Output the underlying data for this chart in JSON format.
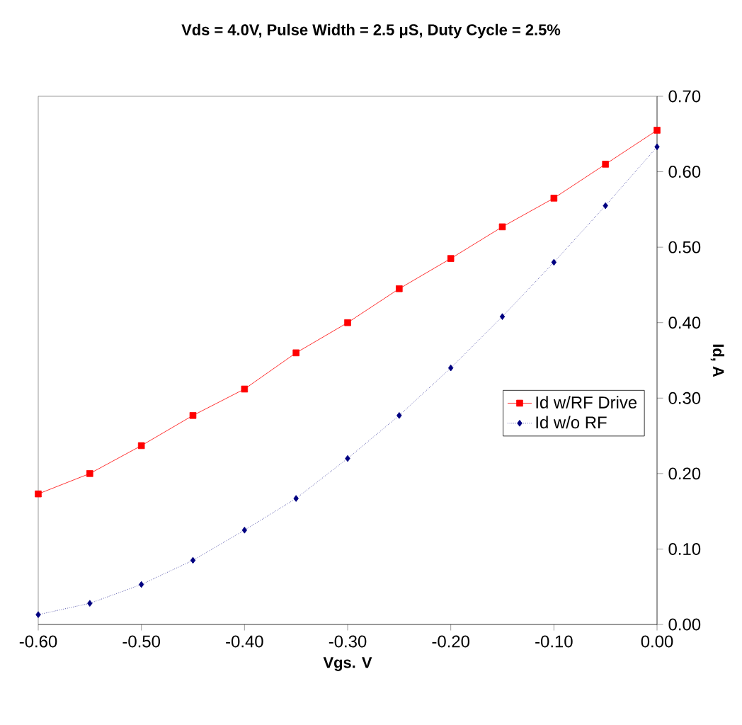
{
  "chart_data": {
    "type": "line",
    "title": "Vds = 4.0V, Pulse Width = 2.5 μS, Duty Cycle = 2.5%",
    "xlabel": "Vgs. V",
    "ylabel": "Id, A",
    "x": [
      -0.6,
      -0.55,
      -0.5,
      -0.45,
      -0.4,
      -0.35,
      -0.3,
      -0.25,
      -0.2,
      -0.15,
      -0.1,
      -0.05,
      0
    ],
    "series": [
      {
        "name": "Id w/RF Drive",
        "color": "#ff0000",
        "marker": "square",
        "line_style": "solid",
        "values": [
          0.173,
          0.2,
          0.237,
          0.277,
          0.312,
          0.36,
          0.4,
          0.445,
          0.485,
          0.527,
          0.565,
          0.61,
          0.655
        ]
      },
      {
        "name": "Id w/o RF",
        "color": "#000080",
        "marker": "diamond",
        "line_style": "dotted",
        "values": [
          0.013,
          0.028,
          0.053,
          0.085,
          0.125,
          0.167,
          0.22,
          0.277,
          0.34,
          0.408,
          0.48,
          0.555,
          0.633
        ]
      }
    ],
    "xlim": [
      -0.6,
      0
    ],
    "xticks": [
      {
        "value": -0.6,
        "label": "-0.60"
      },
      {
        "value": -0.5,
        "label": "-0.50"
      },
      {
        "value": -0.4,
        "label": "-0.40"
      },
      {
        "value": -0.3,
        "label": "-0.30"
      },
      {
        "value": -0.2,
        "label": "-0.20"
      },
      {
        "value": -0.1,
        "label": "-0.10"
      },
      {
        "value": 0,
        "label": "0.00"
      }
    ],
    "ylim": [
      0,
      0.7
    ],
    "yticks": [
      {
        "value": 0,
        "label": "0.00"
      },
      {
        "value": 0.1,
        "label": "0.10"
      },
      {
        "value": 0.2,
        "label": "0.20"
      },
      {
        "value": 0.3,
        "label": "0.30"
      },
      {
        "value": 0.4,
        "label": "0.40"
      },
      {
        "value": 0.5,
        "label": "0.50"
      },
      {
        "value": 0.6,
        "label": "0.60"
      },
      {
        "value": 0.7,
        "label": "0.70"
      }
    ],
    "grid": false,
    "legend": "right"
  }
}
